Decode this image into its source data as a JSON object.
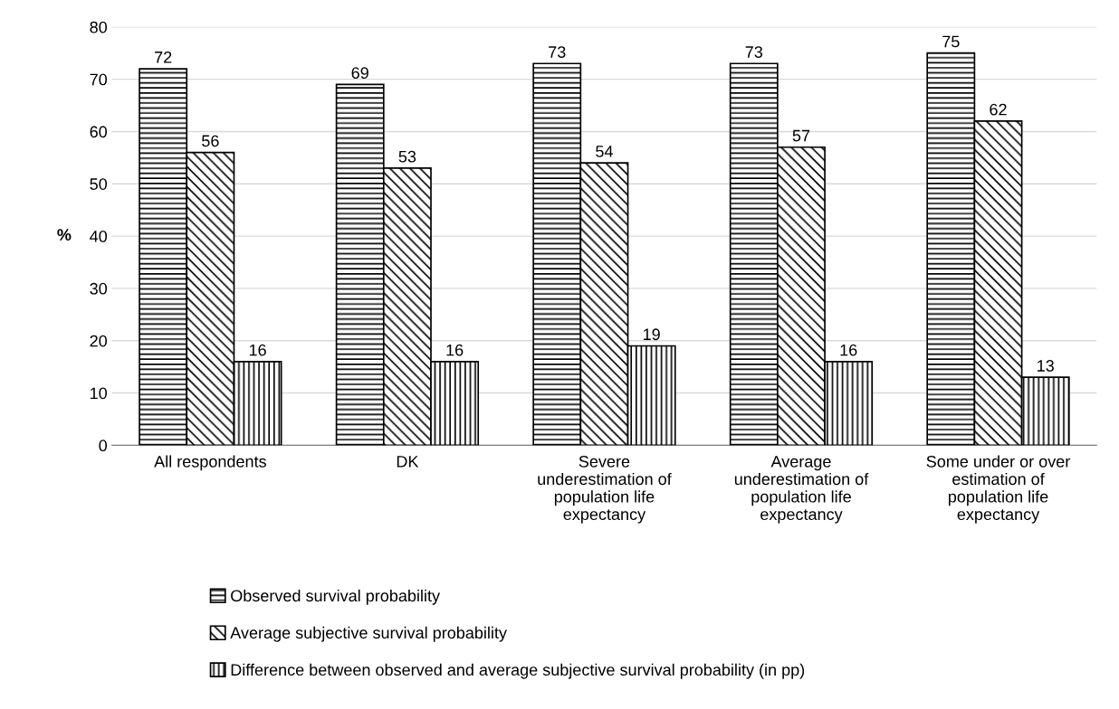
{
  "chart_data": {
    "type": "bar",
    "ylabel": "%",
    "categories": [
      "All respondents",
      "DK",
      "Severe\nunderestimation of\npopulation life\nexpectancy",
      "Average\nunderestimation of\npopulation life\nexpectancy",
      "Some under or over\nestimation of\npopulation life\nexpectancy"
    ],
    "series": [
      {
        "name": "Observed survival probability",
        "color": "#000000",
        "values": [
          72,
          69,
          73,
          73,
          75
        ]
      },
      {
        "name": "Average subjective survival probability",
        "color": "#000000",
        "values": [
          56,
          53,
          54,
          57,
          62
        ]
      },
      {
        "name": "Difference between observed and average subjective survival probability (in pp)",
        "color": "#000000",
        "values": [
          16,
          16,
          19,
          16,
          13
        ]
      }
    ],
    "ylim": [
      0,
      80
    ],
    "yticks": [
      0,
      10,
      20,
      30,
      40,
      50,
      60,
      70,
      80
    ],
    "grid": "y",
    "legend": "bottom",
    "data_labels": true
  }
}
